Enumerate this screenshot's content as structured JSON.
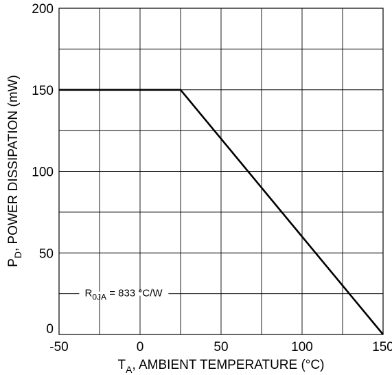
{
  "chart_data": {
    "type": "line",
    "title": "",
    "xlabel": {
      "main": "T",
      "subscript": "A",
      "rest": ", AMBIENT TEMPERATURE (°C)"
    },
    "ylabel": {
      "main": "P",
      "subscript": "D",
      "rest": ", POWER DISSIPATION (mW)"
    },
    "xlim": [
      -50,
      150
    ],
    "ylim": [
      0,
      200
    ],
    "x_ticks": [
      -50,
      0,
      50,
      100,
      150
    ],
    "y_ticks": [
      0,
      50,
      100,
      150,
      200
    ],
    "x_tick_labels": [
      "-50",
      "0",
      "50",
      "100",
      "150"
    ],
    "y_tick_labels": [
      "0",
      "50",
      "100",
      "150",
      "200"
    ],
    "x_grid_step": 25,
    "y_grid_step": 25,
    "grid": true,
    "series": [
      {
        "points": [
          [
            -50,
            150
          ],
          [
            25,
            150
          ],
          [
            150,
            0
          ]
        ]
      }
    ],
    "annotation": {
      "main": "R",
      "subscript": "0JA",
      "rest": " = 833 °C/W",
      "x": -37.5,
      "y": 25
    },
    "colors": {
      "line": "#000000",
      "grid": "#000000",
      "background": "#ffffff"
    }
  }
}
